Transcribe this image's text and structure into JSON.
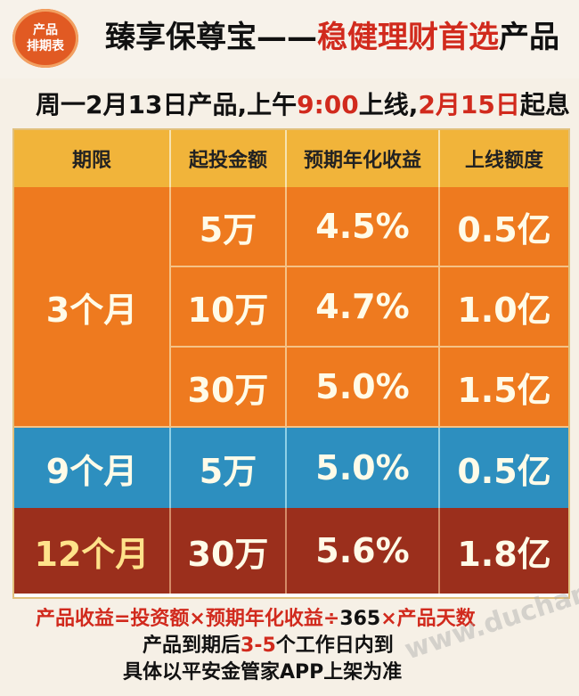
{
  "badge": {
    "line1": "产品",
    "line2": "排期表"
  },
  "title": {
    "part1": "臻享保尊宝——",
    "part2": "稳健理财首选",
    "part3": "产品"
  },
  "subtitle": {
    "part1": "周一2月13日产品,上午",
    "time": "9:00",
    "part2": "上线,",
    "date": "2月15日",
    "part3": "起息"
  },
  "table": {
    "headers": [
      "期限",
      "起投金额",
      "预期年化收益",
      "上线额度"
    ],
    "rows": [
      {
        "term": "3个月",
        "amount": "5万",
        "rate": "4.5%",
        "quota": "0.5亿"
      },
      {
        "term": "3个月",
        "amount": "10万",
        "rate": "4.7%",
        "quota": "1.0亿"
      },
      {
        "term": "3个月",
        "amount": "30万",
        "rate": "5.0%",
        "quota": "1.5亿"
      },
      {
        "term": "9个月",
        "amount": "5万",
        "rate": "5.0%",
        "quota": "0.5亿"
      },
      {
        "term": "12个月",
        "amount": "30万",
        "rate": "5.6%",
        "quota": "1.8亿"
      }
    ]
  },
  "footer": {
    "formula_part1": "产品收益=投资额×预期年化收益÷",
    "formula_num": "365",
    "formula_part2": "×产品天数",
    "line2_part1": "产品到期后",
    "line2_red": "3-5",
    "line2_part2": "个工作日内到",
    "line3": "具体以平安金管家APP上架为准"
  },
  "watermark": "www.duchang.org",
  "colors": {
    "orange": "#ee7a1f",
    "blue": "#2d8fbf",
    "maroon": "#9b2f1c",
    "header_yellow": "#f1b43a",
    "accent_red": "#d12a1d"
  }
}
